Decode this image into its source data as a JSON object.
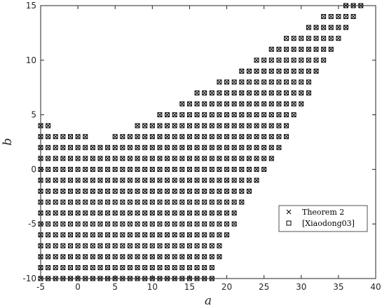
{
  "chart_data": {
    "type": "scatter",
    "title": "",
    "xlabel": "a",
    "ylabel": "b",
    "xlim": [
      -5,
      40
    ],
    "ylim": [
      -10,
      15
    ],
    "xticks": [
      -5,
      0,
      5,
      10,
      15,
      20,
      25,
      30,
      35,
      40
    ],
    "yticks": [
      -10,
      -5,
      0,
      5,
      10,
      15
    ],
    "grid": false,
    "legend_position": "lower-right",
    "series": [
      {
        "name": "Theorem 2",
        "marker": "x",
        "color": "#000000"
      },
      {
        "name": "[Xiaodong03]",
        "marker": "square",
        "color": "#000000"
      }
    ],
    "shared_points": "both series are plotted at every integer pair (a, b) listed in rows; each row gives b and the inclusive range of a",
    "rows": [
      {
        "b": -10,
        "a_min": -5,
        "a_max": 18
      },
      {
        "b": -9,
        "a_min": -5,
        "a_max": 18
      },
      {
        "b": -8,
        "a_min": -5,
        "a_max": 19
      },
      {
        "b": -7,
        "a_min": -5,
        "a_max": 19
      },
      {
        "b": -6,
        "a_min": -5,
        "a_max": 20
      },
      {
        "b": -5,
        "a_min": -5,
        "a_max": 21
      },
      {
        "b": -4,
        "a_min": -5,
        "a_max": 21
      },
      {
        "b": -3,
        "a_min": -5,
        "a_max": 22
      },
      {
        "b": -2,
        "a_min": -5,
        "a_max": 23
      },
      {
        "b": -1,
        "a_min": -5,
        "a_max": 24
      },
      {
        "b": 0,
        "a_min": -5,
        "a_max": 25
      },
      {
        "b": 1,
        "a_min": -5,
        "a_max": 26
      },
      {
        "b": 2,
        "a_min": -5,
        "a_max": 27
      },
      {
        "b": 3,
        "a_min": -5,
        "a_max": 1
      },
      {
        "b": 3,
        "a_min": 5,
        "a_max": 28
      },
      {
        "b": 4,
        "a_min": -5,
        "a_max": -4
      },
      {
        "b": 4,
        "a_min": 8,
        "a_max": 28
      },
      {
        "b": 5,
        "a_min": 11,
        "a_max": 29
      },
      {
        "b": 6,
        "a_min": 14,
        "a_max": 30
      },
      {
        "b": 7,
        "a_min": 16,
        "a_max": 31
      },
      {
        "b": 8,
        "a_min": 19,
        "a_max": 31
      },
      {
        "b": 9,
        "a_min": 22,
        "a_max": 32
      },
      {
        "b": 10,
        "a_min": 24,
        "a_max": 33
      },
      {
        "b": 11,
        "a_min": 26,
        "a_max": 34
      },
      {
        "b": 12,
        "a_min": 28,
        "a_max": 35
      },
      {
        "b": 13,
        "a_min": 31,
        "a_max": 36
      },
      {
        "b": 14,
        "a_min": 33,
        "a_max": 37
      },
      {
        "b": 15,
        "a_min": 36,
        "a_max": 38
      }
    ]
  }
}
